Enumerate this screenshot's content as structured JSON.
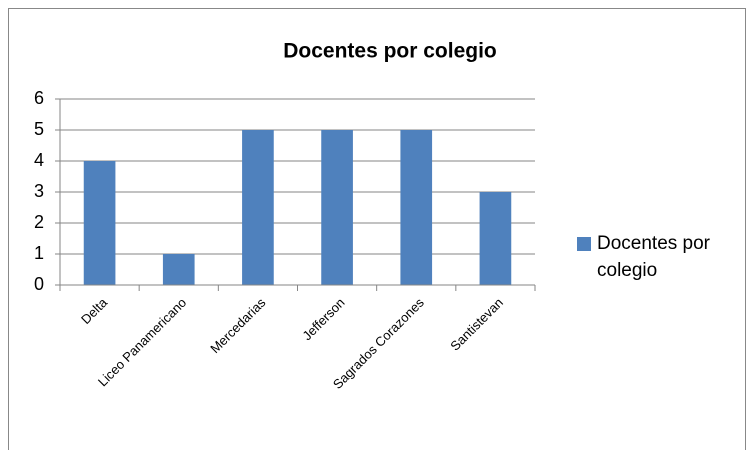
{
  "chart_data": {
    "type": "bar",
    "title": "Docentes por colegio",
    "categories": [
      "Delta",
      "Liceo Panamericano",
      "Mercedarias",
      "Jefferson",
      "Sagrados Corazones",
      "Santistevan"
    ],
    "series": [
      {
        "name": "Docentes por colegio",
        "color": "#4f81bd",
        "values": [
          4,
          1,
          5,
          5,
          5,
          3
        ]
      }
    ],
    "ylim": [
      0,
      6
    ],
    "yticks": [
      0,
      1,
      2,
      3,
      4,
      5,
      6
    ],
    "grid": true,
    "legend": "right"
  }
}
